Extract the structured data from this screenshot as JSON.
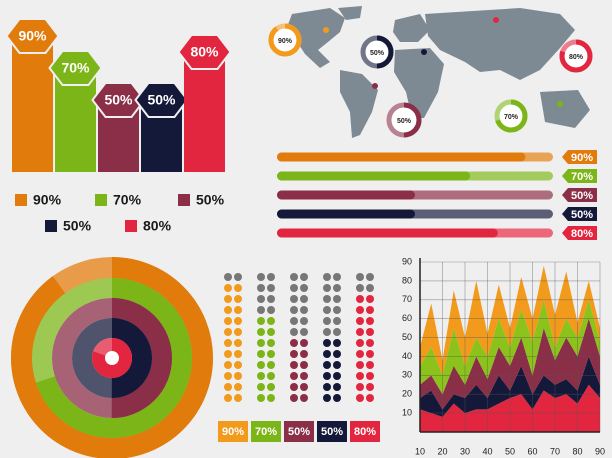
{
  "chart_data": [
    {
      "type": "bar",
      "values": [
        90,
        70,
        50,
        50,
        80
      ],
      "value_labels": [
        "90%",
        "70%",
        "50%",
        "50%",
        "80%"
      ],
      "colors": [
        "#e07b0c",
        "#7cb518",
        "#8b2e48",
        "#14193a",
        "#e3263f"
      ]
    },
    {
      "type": "map",
      "values": [
        90,
        50,
        80,
        50,
        70
      ],
      "value_labels": [
        "90%",
        "50%",
        "80%",
        "50%",
        "70%"
      ],
      "colors": [
        "#f29a1c",
        "#14193a",
        "#e3263f",
        "#8b2e48",
        "#7cb518"
      ]
    },
    {
      "type": "progress",
      "values": [
        90,
        70,
        50,
        50,
        80
      ],
      "value_labels": [
        "90%",
        "70%",
        "50%",
        "50%",
        "80%"
      ],
      "colors": [
        "#e07b0c",
        "#7cb518",
        "#8b2e48",
        "#14193a",
        "#e3263f"
      ]
    },
    {
      "type": "rings",
      "values": [
        90,
        70,
        50,
        50,
        80
      ],
      "colors": [
        "#e07b0c",
        "#7cb518",
        "#8b2e48",
        "#14193a",
        "#e3263f"
      ]
    },
    {
      "type": "dots",
      "values": [
        90,
        70,
        50,
        50,
        80
      ],
      "value_labels": [
        "90%",
        "70%",
        "50%",
        "50%",
        "80%"
      ],
      "colors": [
        "#f29a1c",
        "#7cb518",
        "#8b2e48",
        "#14193a",
        "#e3263f"
      ]
    },
    {
      "type": "area",
      "x": [
        10,
        15,
        20,
        25,
        30,
        35,
        40,
        45,
        50,
        55,
        60,
        65,
        70,
        75,
        80,
        85,
        90
      ],
      "series": [
        {
          "color": "#e3263f",
          "values": [
            12,
            10,
            8,
            15,
            10,
            12,
            12,
            15,
            18,
            20,
            12,
            22,
            18,
            20,
            15,
            25,
            18
          ]
        },
        {
          "color": "#14193a",
          "values": [
            6,
            12,
            4,
            5,
            8,
            13,
            6,
            15,
            4,
            15,
            8,
            8,
            7,
            8,
            7,
            15,
            7
          ]
        },
        {
          "color": "#8b2e48",
          "values": [
            7,
            8,
            8,
            15,
            7,
            15,
            10,
            15,
            13,
            15,
            10,
            25,
            13,
            22,
            18,
            20,
            15
          ]
        },
        {
          "color": "#8cc21c",
          "values": [
            10,
            15,
            10,
            20,
            10,
            10,
            12,
            15,
            10,
            15,
            18,
            15,
            7,
            10,
            10,
            10,
            8
          ]
        },
        {
          "color": "#f29a1c",
          "values": [
            10,
            23,
            8,
            20,
            15,
            30,
            12,
            18,
            10,
            17,
            12,
            18,
            17,
            25,
            8,
            10,
            7
          ]
        }
      ],
      "xlim": [
        10,
        90
      ],
      "ylim": [
        0,
        90
      ],
      "xticks": [
        10,
        20,
        30,
        40,
        50,
        60,
        70,
        80,
        90
      ],
      "yticks": [
        10,
        20,
        30,
        40,
        50,
        60,
        70,
        80,
        90
      ],
      "grid": true
    }
  ]
}
